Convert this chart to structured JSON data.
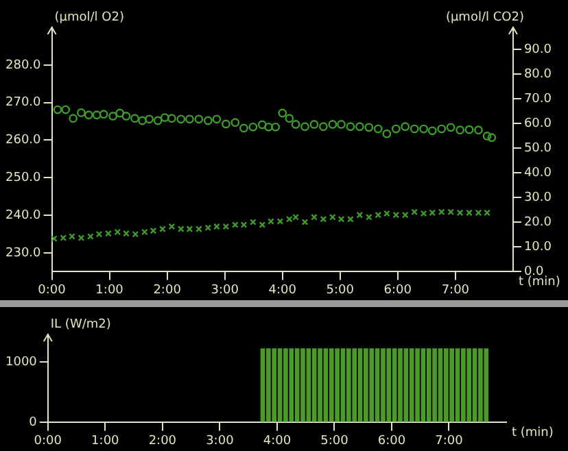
{
  "chart_data": [
    {
      "type": "scatter",
      "ylabel": "(µmol/l O2)",
      "y2label": "(µmol/l CO2)",
      "xlabel": "t (min)",
      "xlim": [
        0,
        8
      ],
      "xticks": [
        {
          "value": 0,
          "label": "0:00"
        },
        {
          "value": 1,
          "label": "1:00"
        },
        {
          "value": 2,
          "label": "2:00"
        },
        {
          "value": 3,
          "label": "3:00"
        },
        {
          "value": 4,
          "label": "4:00"
        },
        {
          "value": 5,
          "label": "5:00"
        },
        {
          "value": 6,
          "label": "6:00"
        },
        {
          "value": 7,
          "label": "7:00"
        }
      ],
      "ylim": [
        225,
        290
      ],
      "yticks": [
        {
          "value": 230,
          "label": "230.0"
        },
        {
          "value": 240,
          "label": "240.0"
        },
        {
          "value": 250,
          "label": "250.0"
        },
        {
          "value": 260,
          "label": "260.0"
        },
        {
          "value": 270,
          "label": "270.0"
        },
        {
          "value": 280,
          "label": "280.0"
        }
      ],
      "y2lim": [
        0,
        99
      ],
      "y2ticks": [
        {
          "value": 0,
          "label": "0.0"
        },
        {
          "value": 10,
          "label": "10.0"
        },
        {
          "value": 20,
          "label": "20.0"
        },
        {
          "value": 30,
          "label": "30.0"
        },
        {
          "value": 40,
          "label": "40.0"
        },
        {
          "value": 50,
          "label": "50.0"
        },
        {
          "value": 60,
          "label": "60.0"
        },
        {
          "value": 70,
          "label": "70.0"
        },
        {
          "value": 80,
          "label": "80.0"
        },
        {
          "value": 90,
          "label": "90.0"
        }
      ],
      "series": [
        {
          "color": "#3f9a2c",
          "marker": "circle",
          "x": [
            0.1,
            0.24,
            0.37,
            0.51,
            0.64,
            0.78,
            0.9,
            1.06,
            1.18,
            1.29,
            1.44,
            1.57,
            1.69,
            1.84,
            1.96,
            2.08,
            2.24,
            2.39,
            2.55,
            2.71,
            2.86,
            3.02,
            3.18,
            3.33,
            3.49,
            3.65,
            3.76,
            3.88,
            4.0,
            4.12,
            4.23,
            4.39,
            4.55,
            4.71,
            4.87,
            5.02,
            5.18,
            5.34,
            5.5,
            5.66,
            5.81,
            5.97,
            6.13,
            6.29,
            6.45,
            6.6,
            6.76,
            6.92,
            7.08,
            7.24,
            7.4,
            7.55,
            7.63
          ],
          "values": [
            268.1,
            268.1,
            265.8,
            267.3,
            266.7,
            266.7,
            266.9,
            266.4,
            267.2,
            266.4,
            265.8,
            265.2,
            265.6,
            265.2,
            266.0,
            265.8,
            265.6,
            265.6,
            265.6,
            265.2,
            265.6,
            264.3,
            264.7,
            263.2,
            263.5,
            264.1,
            263.5,
            263.5,
            267.2,
            265.8,
            264.2,
            263.6,
            264.2,
            263.6,
            264.2,
            264.2,
            263.6,
            263.6,
            263.4,
            263.0,
            261.7,
            263.0,
            263.6,
            263.0,
            263.0,
            262.5,
            263.0,
            263.4,
            262.7,
            262.8,
            262.7,
            261.1,
            260.7
          ]
        },
        {
          "color": "#3f9a2c",
          "marker": "cross",
          "axis": "y2",
          "x": [
            0.04,
            0.2,
            0.35,
            0.51,
            0.67,
            0.82,
            0.98,
            1.14,
            1.29,
            1.45,
            1.61,
            1.76,
            1.92,
            2.08,
            2.24,
            2.39,
            2.55,
            2.71,
            2.86,
            3.02,
            3.18,
            3.33,
            3.49,
            3.65,
            3.8,
            3.96,
            4.12,
            4.23,
            4.39,
            4.55,
            4.71,
            4.87,
            5.02,
            5.18,
            5.34,
            5.5,
            5.66,
            5.81,
            5.97,
            6.13,
            6.29,
            6.45,
            6.6,
            6.76,
            6.92,
            7.08,
            7.24,
            7.4,
            7.55
          ],
          "values": [
            13.4,
            13.7,
            14.3,
            13.7,
            14.3,
            15.2,
            15.5,
            16.1,
            15.5,
            15.2,
            16.1,
            16.6,
            17.3,
            18.3,
            17.3,
            17.3,
            17.3,
            17.8,
            18.3,
            18.3,
            19.0,
            19.0,
            20.1,
            19.0,
            20.4,
            20.4,
            21.3,
            22.1,
            20.1,
            22.1,
            21.3,
            22.1,
            21.3,
            21.3,
            23.0,
            22.1,
            23.0,
            23.6,
            23.0,
            23.0,
            24.2,
            23.6,
            23.9,
            24.2,
            24.2,
            23.9,
            23.9,
            23.9,
            23.9
          ]
        }
      ]
    },
    {
      "type": "bar",
      "ylabel": "IL (W/m2)",
      "xlabel": "t (min)",
      "color": "#4c9a2a",
      "xlim": [
        0,
        8
      ],
      "xticks": [
        {
          "value": 0,
          "label": "0:00"
        },
        {
          "value": 1,
          "label": "1:00"
        },
        {
          "value": 2,
          "label": "2:00"
        },
        {
          "value": 3,
          "label": "3:00"
        },
        {
          "value": 4,
          "label": "4:00"
        },
        {
          "value": 5,
          "label": "5:00"
        },
        {
          "value": 6,
          "label": "6:00"
        },
        {
          "value": 7,
          "label": "7:00"
        }
      ],
      "ylim": [
        0,
        1460
      ],
      "yticks": [
        0,
        1000
      ],
      "x": [
        0.05,
        0.15,
        0.25,
        0.35,
        0.45,
        0.55,
        0.65,
        0.75,
        0.85,
        0.95,
        1.05,
        1.15,
        1.25,
        1.35,
        1.45,
        1.55,
        1.65,
        1.75,
        1.85,
        1.95,
        2.05,
        2.15,
        2.25,
        2.35,
        2.45,
        2.55,
        2.65,
        2.75,
        2.85,
        2.95,
        3.05,
        3.15,
        3.25,
        3.35,
        3.45,
        3.55,
        3.65,
        3.75,
        3.85,
        3.95,
        4.05,
        4.15,
        4.25,
        4.35,
        4.45,
        4.55,
        4.65,
        4.75,
        4.85,
        4.95,
        5.05,
        5.15,
        5.25,
        5.35,
        5.45,
        5.55,
        5.65,
        5.75,
        5.85,
        5.95,
        6.05,
        6.15,
        6.25,
        6.35,
        6.45,
        6.55,
        6.65,
        6.75,
        6.85,
        6.95,
        7.05,
        7.15,
        7.25,
        7.35,
        7.45,
        7.55,
        7.65
      ],
      "values": [
        0,
        0,
        0,
        0,
        0,
        0,
        0,
        0,
        0,
        0,
        0,
        0,
        0,
        0,
        0,
        0,
        0,
        0,
        0,
        0,
        0,
        0,
        0,
        0,
        0,
        0,
        0,
        0,
        0,
        0,
        0,
        0,
        0,
        0,
        0,
        0,
        0,
        1230,
        1230,
        1230,
        1230,
        1230,
        1230,
        1230,
        1230,
        1230,
        1230,
        1230,
        1230,
        1230,
        1230,
        1230,
        1230,
        1230,
        1230,
        1230,
        1230,
        1230,
        1230,
        1230,
        1230,
        1230,
        1230,
        1230,
        1230,
        1230,
        1230,
        1230,
        1230,
        1230,
        1230,
        1230,
        1230,
        1230,
        1230,
        1230,
        1230
      ]
    }
  ]
}
